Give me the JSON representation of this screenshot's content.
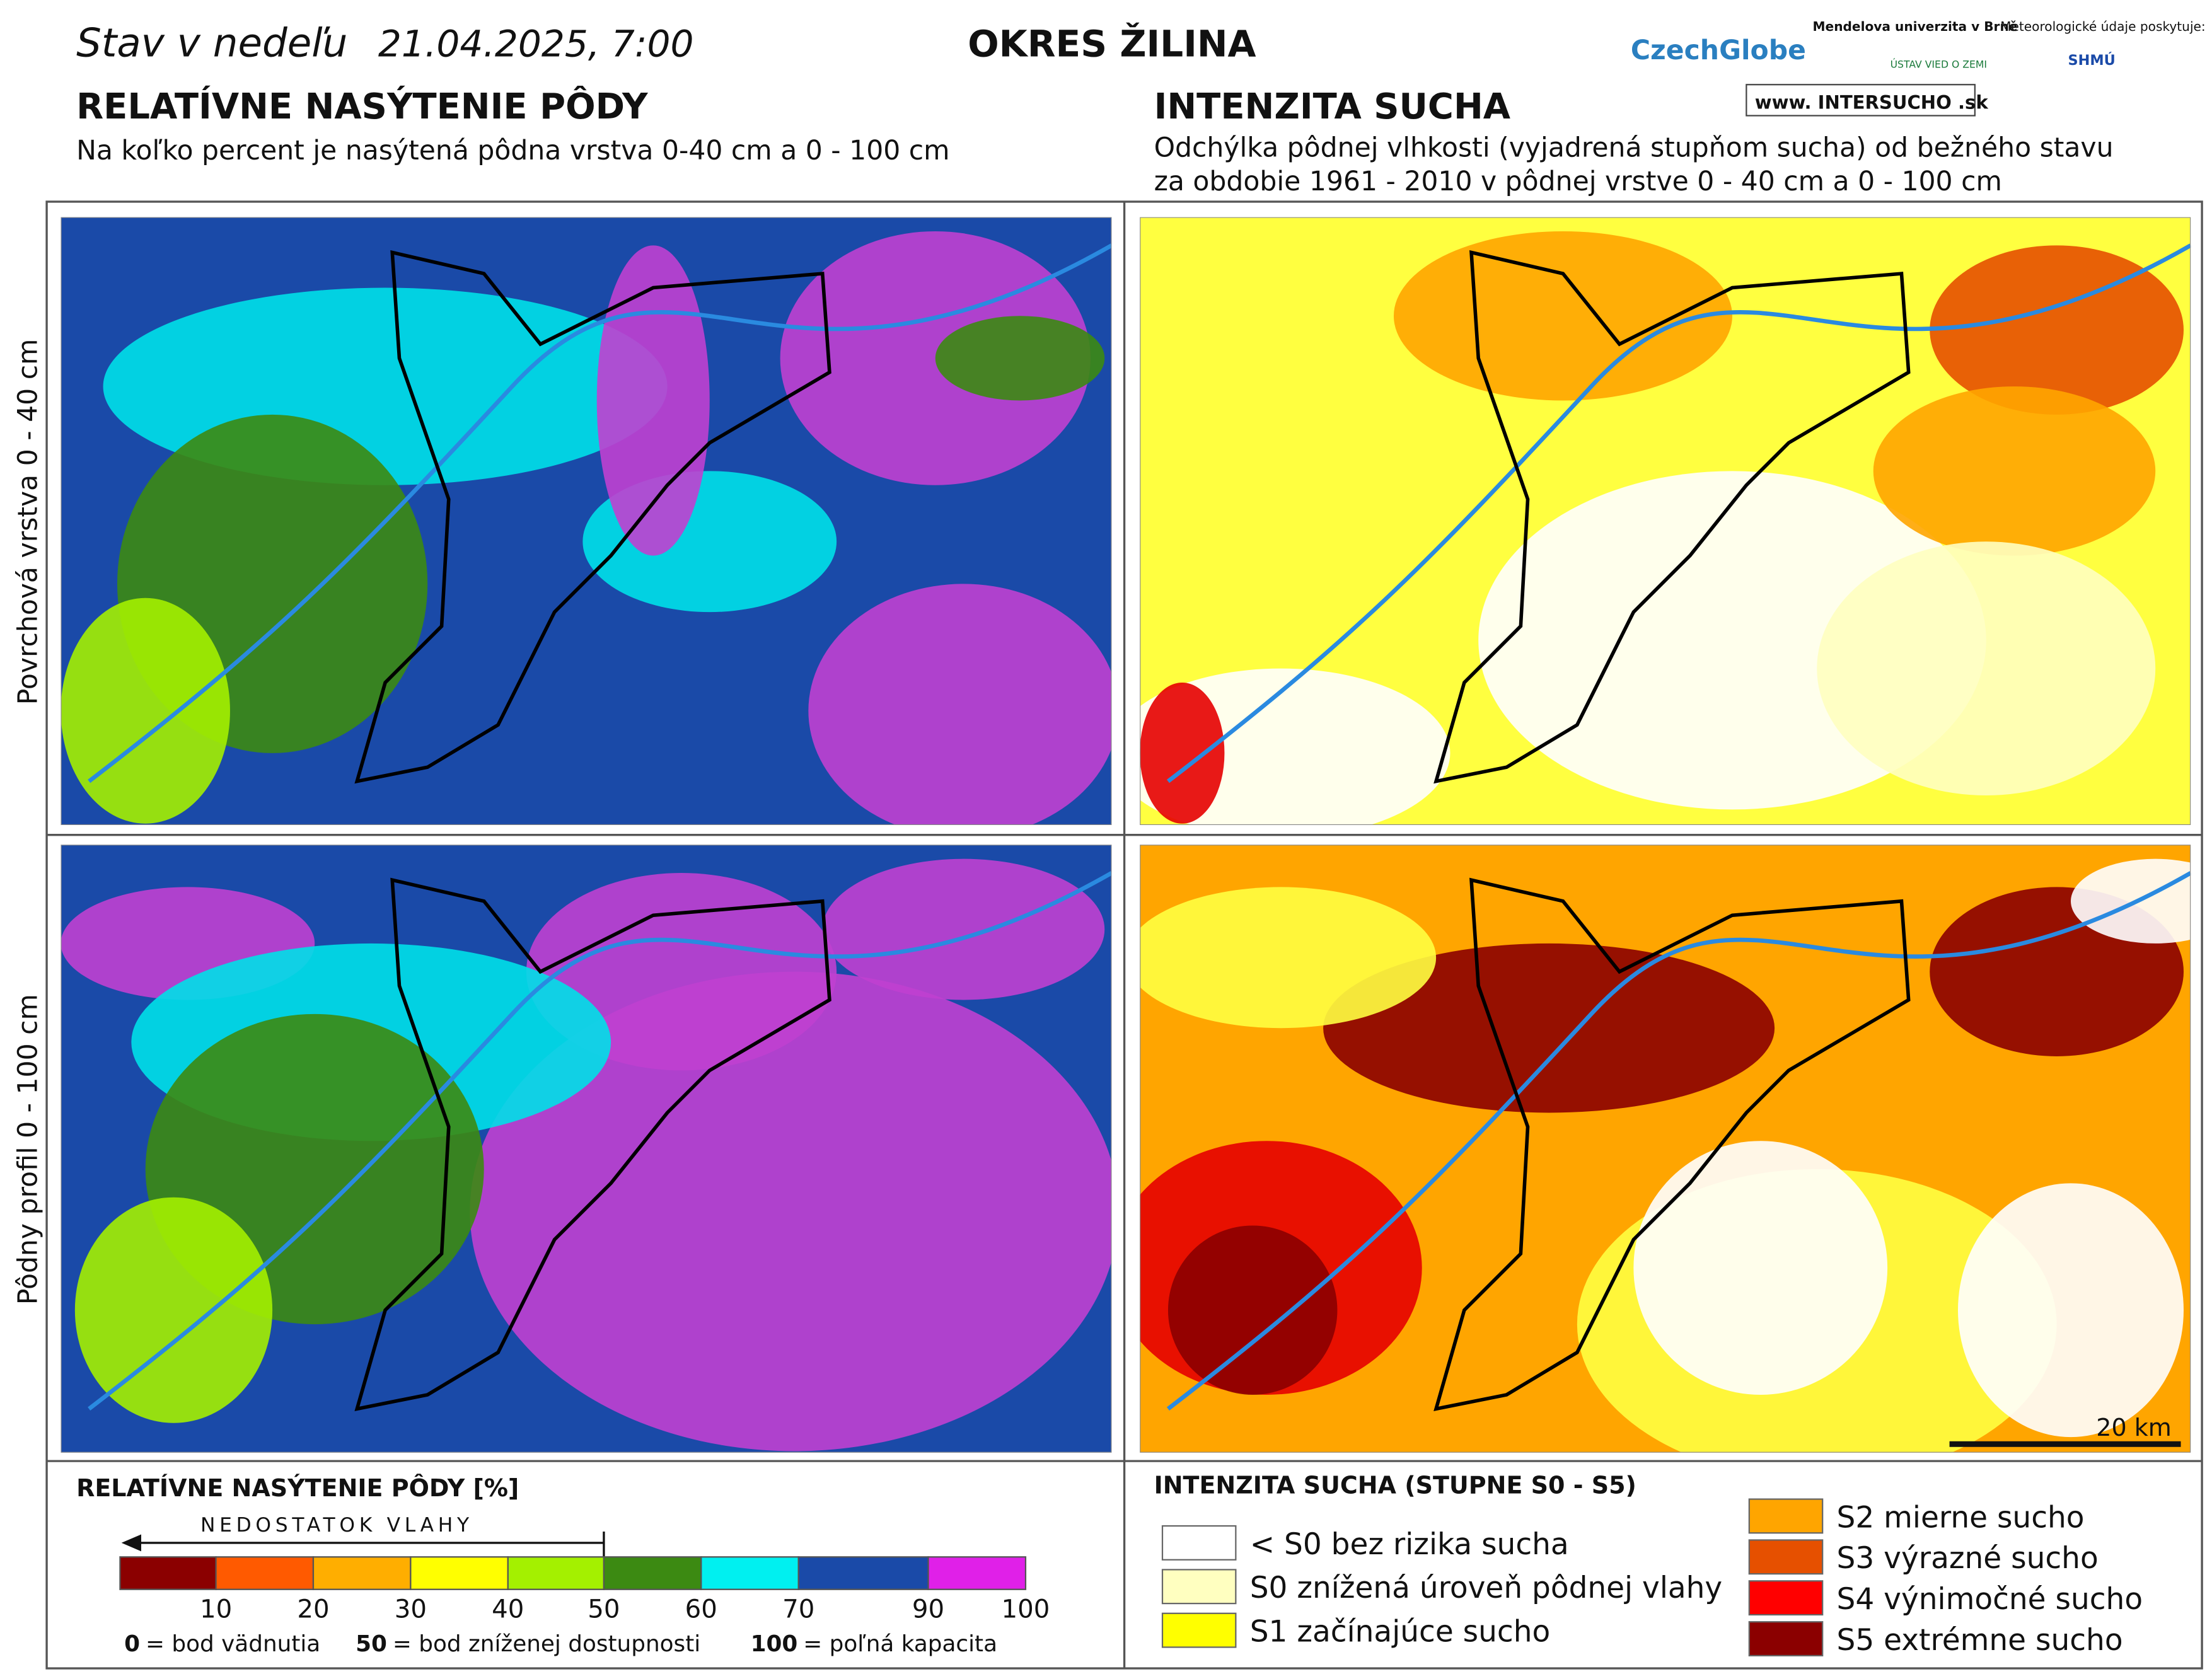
{
  "header": {
    "date_label": "Stav v nedeľu",
    "date": "21.04.2025, 7:00",
    "district": "OKRES ŽILINA"
  },
  "logos": {
    "czechglobe": "CzechGlobe",
    "mendel": "Mendelova univerzita v Brně",
    "uvz": "ÚSTAV VIED O ZEMI",
    "meteo": "Meteorologické údaje poskytuje:",
    "shmu": "SHMÚ",
    "web": "www. INTERSUCHO .sk"
  },
  "left": {
    "title": "RELATÍVNE NASÝTENIE PÔDY",
    "subtitle": "Na koľko percent je nasýtená pôdna vrstva 0-40 cm a 0 - 100 cm"
  },
  "right": {
    "title": "INTENZITA SUCHA",
    "subtitle_lines": [
      "Odchýlka pôdnej vlhkosti (vyjadrená stupňom sucha) od bežného stavu",
      "za obdobie 1961 - 2010 v pôdnej vrstve 0 - 40 cm a 0 - 100 cm"
    ]
  },
  "rows": [
    "Povrchová vrstva 0 - 40 cm",
    "Pôdny profil 0 - 100 cm"
  ],
  "scale_bar": "20 km",
  "legend_left": {
    "title": "RELATÍVNE NASÝTENIE PÔDY [%]",
    "arrow": "NEDOSTATOK VLAHY",
    "colors": [
      "#8b0000",
      "#ff5a00",
      "#ffae00",
      "#ffff00",
      "#a4f000",
      "#3c8a12",
      "#00f0f0",
      "#1a4aa8",
      "#e020e8"
    ],
    "ticks": [
      10,
      20,
      30,
      40,
      50,
      60,
      70,
      90,
      100
    ],
    "notes": [
      {
        "value": "0",
        "text": "= bod vädnutia"
      },
      {
        "value": "50",
        "text": "= bod zníženej dostupnosti"
      },
      {
        "value": "100",
        "text": "= poľná kapacita"
      }
    ]
  },
  "legend_right": {
    "title": "INTENZITA SUCHA (STUPNE S0 - S5)",
    "items": [
      {
        "label": "< S0 bez rizika sucha",
        "color": "#ffffff"
      },
      {
        "label": "S0 znížená úroveň pôdnej vlahy",
        "color": "#ffffc0"
      },
      {
        "label": "S1 začínajúce sucho",
        "color": "#ffff00"
      },
      {
        "label": "S2 mierne sucho",
        "color": "#ffa500"
      },
      {
        "label": "S3 výrazné sucho",
        "color": "#e65000"
      },
      {
        "label": "S4 výnimočné sucho",
        "color": "#ff0000"
      },
      {
        "label": "S5 extrémne sucho",
        "color": "#8b0000"
      }
    ]
  }
}
